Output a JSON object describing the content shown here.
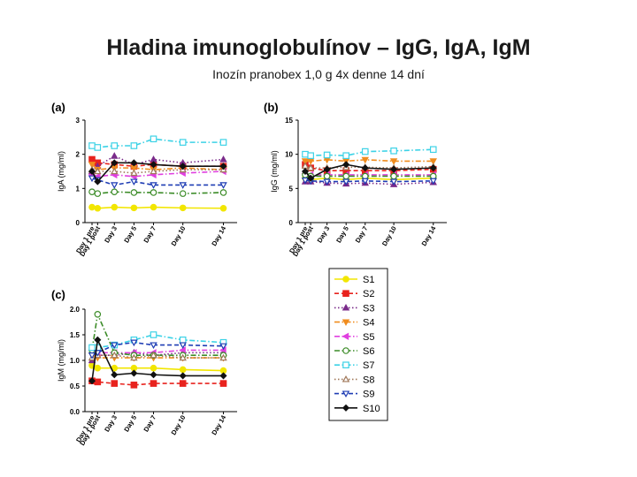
{
  "slide": {
    "title": "Hladina imunoglobulínov – IgG, IgA, IgM",
    "subtitle": "Inozín pranobex 1,0 g 4x denne  14 dní"
  },
  "chart_data": [
    {
      "type": "line",
      "panel_label": "(a)",
      "ylabel": "IgA (mg/ml)",
      "xlabel": "",
      "categories": [
        "Day 1 pre",
        "Day 1 post",
        "Day 3",
        "Day 5",
        "Day 7",
        "Day 10",
        "Day 14"
      ],
      "x": [
        1,
        1.45,
        3,
        5,
        7,
        10,
        14
      ],
      "yticks": [
        0,
        1,
        2,
        3
      ],
      "ylim": [
        0,
        3
      ],
      "series": [
        {
          "name": "S1",
          "values": [
            0.45,
            0.42,
            0.45,
            0.43,
            0.45,
            0.43,
            0.42
          ]
        },
        {
          "name": "S2",
          "values": [
            1.85,
            1.75,
            1.7,
            1.65,
            1.7,
            1.65,
            1.65
          ]
        },
        {
          "name": "S3",
          "values": [
            1.5,
            1.65,
            1.95,
            1.7,
            1.85,
            1.75,
            1.85
          ]
        },
        {
          "name": "S4",
          "values": [
            1.7,
            1.55,
            1.6,
            1.6,
            1.55,
            1.6,
            1.55
          ]
        },
        {
          "name": "S5",
          "values": [
            1.4,
            1.35,
            1.4,
            1.35,
            1.4,
            1.45,
            1.5
          ]
        },
        {
          "name": "S6",
          "values": [
            0.9,
            0.85,
            0.9,
            0.88,
            0.88,
            0.85,
            0.88
          ]
        },
        {
          "name": "S7",
          "values": [
            2.25,
            2.2,
            2.25,
            2.25,
            2.45,
            2.35,
            2.35
          ]
        },
        {
          "name": "S8",
          "values": [
            1.55,
            1.5,
            1.5,
            1.45,
            1.5,
            1.55,
            1.55
          ]
        },
        {
          "name": "S9",
          "values": [
            1.3,
            1.25,
            1.1,
            1.2,
            1.1,
            1.1,
            1.1
          ]
        },
        {
          "name": "S10",
          "values": [
            1.5,
            1.2,
            1.75,
            1.75,
            1.7,
            1.65,
            1.65
          ]
        }
      ]
    },
    {
      "type": "line",
      "panel_label": "(b)",
      "ylabel": "IgG (mg/ml)",
      "xlabel": "",
      "categories": [
        "Day 1 pre",
        "Day 1 post",
        "Day 3",
        "Day 5",
        "Day 7",
        "Day 10",
        "Day 14"
      ],
      "x": [
        1,
        1.45,
        3,
        5,
        7,
        10,
        14
      ],
      "yticks": [
        0,
        5,
        10,
        15
      ],
      "ylim": [
        0,
        15
      ],
      "series": [
        {
          "name": "S1",
          "values": [
            6.5,
            6.3,
            6.5,
            6.3,
            6.5,
            6.3,
            6.5
          ]
        },
        {
          "name": "S2",
          "values": [
            8.5,
            8.0,
            7.6,
            7.6,
            7.6,
            7.6,
            7.8
          ]
        },
        {
          "name": "S3",
          "values": [
            6.0,
            6.0,
            5.8,
            5.7,
            5.8,
            5.6,
            5.9
          ]
        },
        {
          "name": "S4",
          "values": [
            9.0,
            9.0,
            9.2,
            9.0,
            9.2,
            9.0,
            9.0
          ]
        },
        {
          "name": "S5",
          "values": [
            7.2,
            7.0,
            7.0,
            7.0,
            7.0,
            7.0,
            7.0
          ]
        },
        {
          "name": "S6",
          "values": [
            7.0,
            6.8,
            6.8,
            6.8,
            6.8,
            6.8,
            6.8
          ]
        },
        {
          "name": "S7",
          "values": [
            10.0,
            9.8,
            9.9,
            9.8,
            10.4,
            10.5,
            10.7
          ]
        },
        {
          "name": "S8",
          "values": [
            8.3,
            8.0,
            8.0,
            8.1,
            8.1,
            8.0,
            8.2
          ]
        },
        {
          "name": "S9",
          "values": [
            6.2,
            6.1,
            6.0,
            6.0,
            6.1,
            6.0,
            6.1
          ]
        },
        {
          "name": "S10",
          "values": [
            7.5,
            6.5,
            7.8,
            8.5,
            8.0,
            7.8,
            8.0
          ]
        }
      ]
    },
    {
      "type": "line",
      "panel_label": "(c)",
      "ylabel": "IgM (mg/ml)",
      "xlabel": "",
      "categories": [
        "Day 1 pre",
        "Day 1 post",
        "Day 3",
        "Day 5",
        "Day 7",
        "Day 10",
        "Day 14"
      ],
      "x": [
        1,
        1.45,
        3,
        5,
        7,
        10,
        14
      ],
      "yticks": [
        0.0,
        0.5,
        1.0,
        1.5,
        2.0
      ],
      "ylim": [
        0,
        2.0
      ],
      "series": [
        {
          "name": "S1",
          "values": [
            0.9,
            0.85,
            0.85,
            0.85,
            0.85,
            0.82,
            0.8
          ]
        },
        {
          "name": "S2",
          "values": [
            0.6,
            0.58,
            0.55,
            0.52,
            0.55,
            0.55,
            0.55
          ]
        },
        {
          "name": "S3",
          "values": [
            1.0,
            1.1,
            1.1,
            1.15,
            1.1,
            1.15,
            1.15
          ]
        },
        {
          "name": "S4",
          "values": [
            1.1,
            1.05,
            1.05,
            1.05,
            1.05,
            1.05,
            1.05
          ]
        },
        {
          "name": "S5",
          "values": [
            1.2,
            1.15,
            1.15,
            1.15,
            1.15,
            1.2,
            1.2
          ]
        },
        {
          "name": "S6",
          "values": [
            1.2,
            1.9,
            1.15,
            1.1,
            1.1,
            1.1,
            1.1
          ]
        },
        {
          "name": "S7",
          "values": [
            1.25,
            1.25,
            1.3,
            1.4,
            1.5,
            1.4,
            1.35
          ]
        },
        {
          "name": "S8",
          "values": [
            1.05,
            1.1,
            1.1,
            1.05,
            1.1,
            1.05,
            1.05
          ]
        },
        {
          "name": "S9",
          "values": [
            1.1,
            1.15,
            1.3,
            1.35,
            1.3,
            1.3,
            1.28
          ]
        },
        {
          "name": "S10",
          "values": [
            0.6,
            1.4,
            0.72,
            0.75,
            0.72,
            0.7,
            0.7
          ]
        }
      ]
    }
  ],
  "legend": {
    "placement": "bottom-right",
    "entries": [
      {
        "name": "S1",
        "color": "#f2e600",
        "marker": "circle",
        "dash": "solid"
      },
      {
        "name": "S2",
        "color": "#e8231e",
        "marker": "square",
        "dash": "dash"
      },
      {
        "name": "S3",
        "color": "#7a2b8a",
        "marker": "triangle",
        "dash": "dot"
      },
      {
        "name": "S4",
        "color": "#f08c1e",
        "marker": "triangle-down",
        "dash": "dashdot"
      },
      {
        "name": "S5",
        "color": "#e040e0",
        "marker": "triangle-left",
        "dash": "dashdot"
      },
      {
        "name": "S6",
        "color": "#3c8c28",
        "marker": "circle-open",
        "dash": "dashdot"
      },
      {
        "name": "S7",
        "color": "#3cd2e6",
        "marker": "square-open",
        "dash": "dashdot"
      },
      {
        "name": "S8",
        "color": "#a0785a",
        "marker": "triangle-open",
        "dash": "dot"
      },
      {
        "name": "S9",
        "color": "#1e3cb4",
        "marker": "triangle-down-open",
        "dash": "dash"
      },
      {
        "name": "S10",
        "color": "#111111",
        "marker": "diamond",
        "dash": "solid"
      }
    ]
  }
}
